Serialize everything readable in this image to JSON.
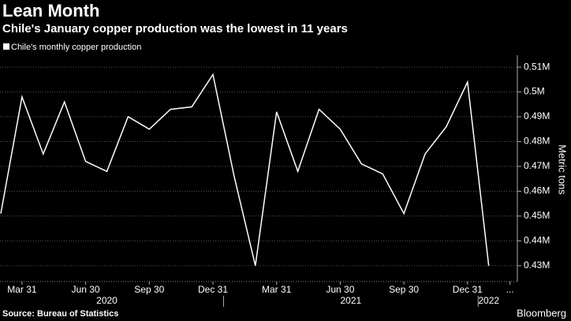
{
  "chart_data": {
    "type": "line",
    "title": "Lean Month",
    "subtitle": "Chile's January copper production was the lowest in 11 years",
    "source": "Source: Bureau of Statistics",
    "brand": "Bloomberg",
    "ylabel": "Metric tons",
    "categories": [
      null,
      "Mar 31",
      null,
      null,
      "Jun 30",
      null,
      null,
      "Sep 30",
      null,
      null,
      "Dec 31",
      null,
      null,
      "Mar 31",
      null,
      null,
      "Jun 30",
      null,
      null,
      "Sep 30",
      null,
      null,
      "Dec 31",
      null,
      "..."
    ],
    "years": [
      "2020",
      "2021",
      "2022"
    ],
    "series": [
      {
        "name": "Chile's monthly copper production",
        "color": "#ffffff",
        "values": [
          451000,
          498000,
          475000,
          496000,
          472000,
          468000,
          490000,
          485000,
          493000,
          494000,
          507000,
          466000,
          430000,
          492000,
          468000,
          493000,
          485000,
          471000,
          467000,
          451000,
          475000,
          486000,
          504000,
          430000,
          null
        ]
      }
    ],
    "ylim": [
      423600,
      514800
    ],
    "yticks": [
      {
        "value": 430000,
        "label": "0.43M"
      },
      {
        "value": 440000,
        "label": "0.44M"
      },
      {
        "value": 450000,
        "label": "0.45M"
      },
      {
        "value": 460000,
        "label": "0.46M"
      },
      {
        "value": 470000,
        "label": "0.47M"
      },
      {
        "value": 480000,
        "label": "0.48M"
      },
      {
        "value": 490000,
        "label": "0.49M"
      },
      {
        "value": 500000,
        "label": "0.5M"
      },
      {
        "value": 510000,
        "label": "0.51M"
      }
    ],
    "grid": true
  }
}
